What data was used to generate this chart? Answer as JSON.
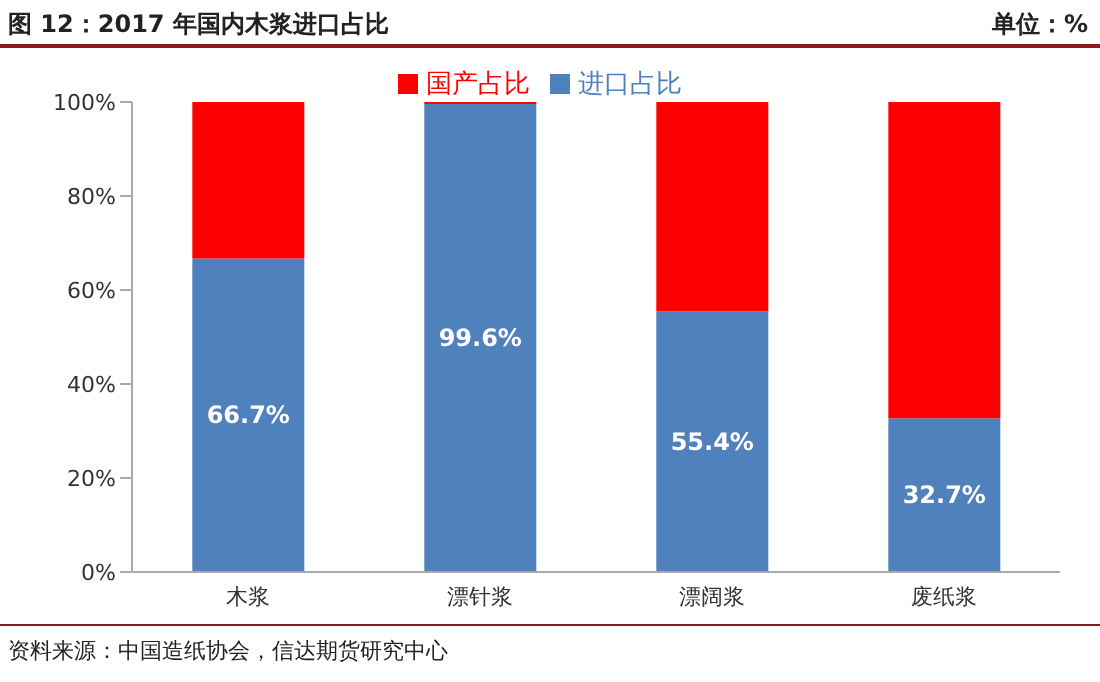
{
  "chart_data": {
    "type": "bar",
    "title": "图 12：2017 年国内木浆进口占比",
    "subtitle": "单位：%",
    "categories": [
      "木浆",
      "漂针浆",
      "漂阔浆",
      "废纸浆"
    ],
    "stacked": true,
    "series": [
      {
        "name": "进口占比",
        "color": "#4f81bd",
        "values": [
          66.7,
          99.6,
          55.4,
          32.7
        ],
        "value_labels": [
          "66.7%",
          "99.6%",
          "55.4%",
          "32.7%"
        ]
      },
      {
        "name": "国产占比",
        "color": "#ff0000",
        "values": [
          33.3,
          0.4,
          44.6,
          67.3
        ]
      }
    ],
    "ylim": [
      0,
      100
    ],
    "yticks": [
      {
        "value": 0,
        "label": "0%"
      },
      {
        "value": 20,
        "label": "20%"
      },
      {
        "value": 40,
        "label": "40%"
      },
      {
        "value": 60,
        "label": "60%"
      },
      {
        "value": 80,
        "label": "80%"
      },
      {
        "value": 100,
        "label": "100%"
      }
    ],
    "grid": false,
    "legend": "top",
    "annotations": [
      "资料来源：中国造纸协会，信达期货研究中心"
    ]
  }
}
